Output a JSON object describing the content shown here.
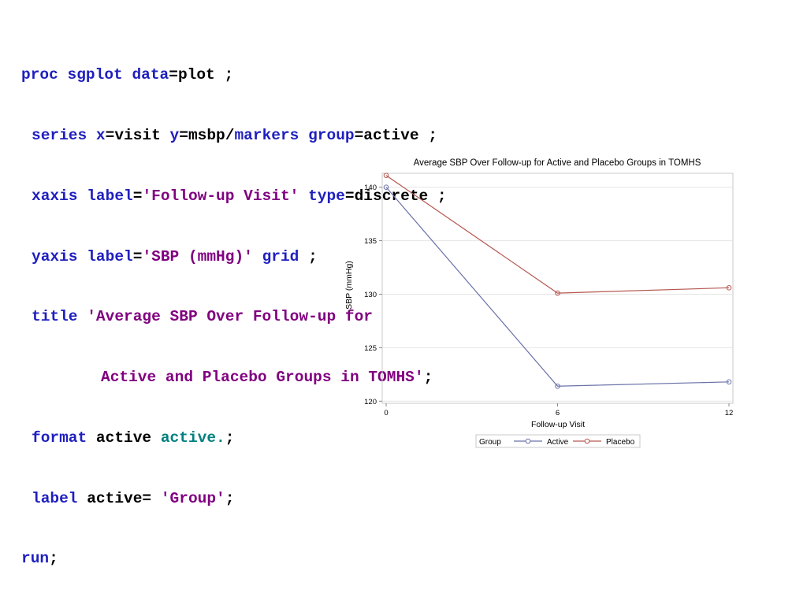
{
  "code": {
    "line1": {
      "kw1": "proc sgplot",
      "kw2": "data",
      "rest": "=plot ;"
    },
    "line2": {
      "kw1": "series",
      "kw2": "x",
      "t1": "=visit ",
      "kw3": "y",
      "t2": "=msbp/",
      "kw4": "markers",
      "kw5": "group",
      "t3": "=active ;"
    },
    "line3": {
      "kw1": "xaxis",
      "kw2": "label",
      "t1": "=",
      "str": "'Follow-up Visit'",
      "kw3": "type",
      "t2": "=discrete ;"
    },
    "line4": {
      "kw1": "yaxis",
      "kw2": "label",
      "t1": "=",
      "str": "'SBP (mmHg)'",
      "kw3": "grid",
      "t2": " ;"
    },
    "line5": {
      "kw1": "title",
      "str": "'Average SBP Over Follow-up for"
    },
    "line6": {
      "str": "Active and Placebo Groups in TOMHS'",
      "t1": ";"
    },
    "line7": {
      "kw1": "format",
      "t1": " active ",
      "fmt": "active.",
      "t2": ";"
    },
    "line8": {
      "kw1": "label",
      "t1": " active= ",
      "str": "'Group'",
      "t2": ";"
    },
    "line9": {
      "kw1": "run",
      "t1": ";"
    }
  },
  "chart_data": {
    "type": "line",
    "title": "Average SBP Over Follow-up for Active and Placebo Groups in TOMHS",
    "xlabel": "Follow-up Visit",
    "ylabel": "SBP (mmHg)",
    "categories": [
      "0",
      "6",
      "12"
    ],
    "ylim": [
      119.8,
      141.3
    ],
    "yticks": [
      120,
      125,
      130,
      135,
      140
    ],
    "grid": true,
    "markers": true,
    "legend_title": "Group",
    "legend_position": "bottom",
    "series": [
      {
        "name": "Active",
        "values": [
          140.0,
          121.4,
          121.8
        ],
        "color": "#6a72a8"
      },
      {
        "name": "Placebo",
        "values": [
          141.1,
          130.1,
          130.6
        ],
        "color": "#b5574f"
      }
    ]
  }
}
